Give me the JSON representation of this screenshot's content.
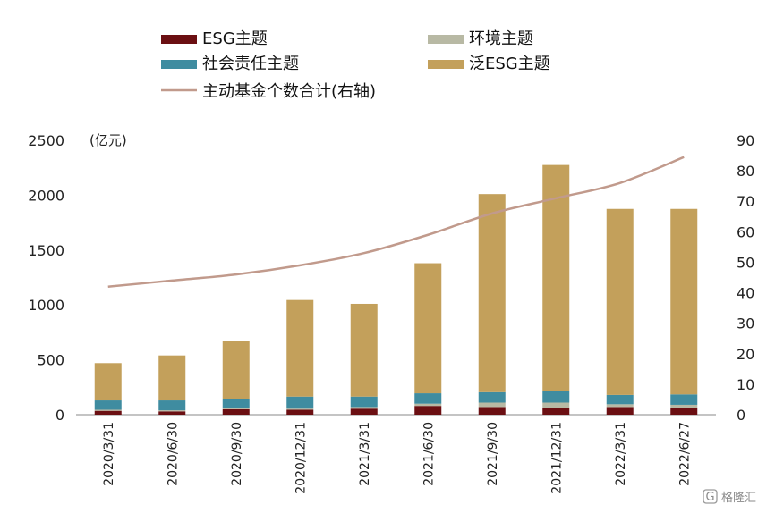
{
  "chart_data": {
    "type": "bar",
    "stacked": true,
    "unit_label": "(亿元)",
    "categories": [
      "2020/3/31",
      "2020/6/30",
      "2020/9/30",
      "2020/12/31",
      "2021/3/31",
      "2021/6/30",
      "2021/9/30",
      "2021/12/31",
      "2022/3/31",
      "2022/6/27"
    ],
    "series": [
      {
        "name": "ESG主题",
        "color": "#6b0f12",
        "values": [
          35,
          30,
          50,
          45,
          55,
          80,
          70,
          60,
          70,
          65
        ]
      },
      {
        "name": "环境主题",
        "color": "#b8b9a4",
        "values": [
          10,
          10,
          10,
          10,
          15,
          20,
          40,
          50,
          25,
          25
        ]
      },
      {
        "name": "社会责任主题",
        "color": "#3f8ca0",
        "values": [
          85,
          90,
          80,
          110,
          95,
          95,
          95,
          105,
          85,
          95
        ]
      },
      {
        "name": "泛ESG主题",
        "color": "#c3a05b",
        "values": [
          340,
          410,
          535,
          880,
          845,
          1185,
          1805,
          2060,
          1695,
          1690
        ]
      }
    ],
    "line_series": {
      "name": "主动基金个数合计(右轴)",
      "color": "#c19a8c",
      "axis": "right",
      "values": [
        42,
        44,
        46,
        49,
        53,
        59,
        66,
        71,
        76,
        84.5
      ]
    },
    "ylim": [
      0,
      2500
    ],
    "yticks": [
      "0",
      "500",
      "1000",
      "1500",
      "2000",
      "2500"
    ],
    "y2lim": [
      0,
      90
    ],
    "y2ticks": [
      "0",
      "10",
      "20",
      "30",
      "40",
      "50",
      "60",
      "70",
      "80",
      "90"
    ],
    "grid": false,
    "legend_position": "top"
  },
  "watermark": {
    "text": "格隆汇"
  }
}
